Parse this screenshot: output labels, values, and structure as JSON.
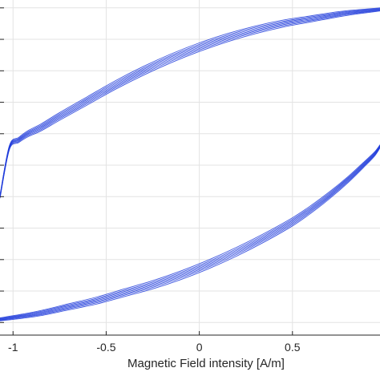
{
  "chart_data": {
    "type": "line",
    "title": "",
    "xlabel": "Magnetic Field intensity [A/m]",
    "ylabel": "",
    "xlim": [
      -1.07,
      0.97
    ],
    "ylim": [
      -1.08,
      1.05
    ],
    "grid": true,
    "x_ticks": [
      -1,
      -0.5,
      0,
      0.5
    ],
    "x_tick_labels": [
      "-1",
      "-0.5",
      "0",
      "0.5"
    ],
    "y_ticks": [
      -1.0,
      -0.8,
      -0.6,
      -0.4,
      -0.2,
      0.0,
      0.2,
      0.4,
      0.6,
      0.8,
      1.0
    ],
    "line_color": "#1f3bdb",
    "series": [
      {
        "branch": "upper",
        "x": [
          -1.07,
          -1.02,
          -0.97,
          -0.92,
          -0.85,
          -0.75,
          -0.6,
          -0.45,
          -0.3,
          -0.15,
          0.0,
          0.15,
          0.3,
          0.45,
          0.6,
          0.75,
          0.85,
          0.97
        ],
        "y": [
          -0.2,
          0.11,
          0.16,
          0.2,
          0.24,
          0.31,
          0.41,
          0.51,
          0.6,
          0.68,
          0.75,
          0.81,
          0.86,
          0.9,
          0.93,
          0.96,
          0.975,
          0.99
        ]
      },
      {
        "branch": "lower",
        "x": [
          -1.07,
          -0.95,
          -0.85,
          -0.7,
          -0.55,
          -0.4,
          -0.25,
          -0.1,
          0.05,
          0.2,
          0.35,
          0.5,
          0.6,
          0.7,
          0.8,
          0.88,
          0.94,
          0.97
        ],
        "y": [
          -0.98,
          -0.96,
          -0.94,
          -0.9,
          -0.86,
          -0.81,
          -0.76,
          -0.7,
          -0.63,
          -0.55,
          -0.46,
          -0.36,
          -0.28,
          -0.19,
          -0.09,
          0.0,
          0.07,
          0.12
        ]
      }
    ]
  }
}
